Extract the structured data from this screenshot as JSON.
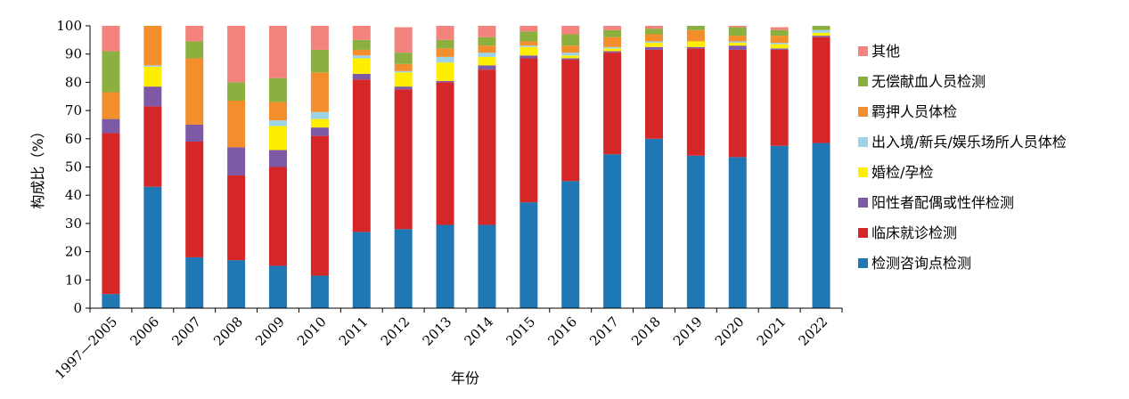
{
  "chart_data": {
    "type": "bar",
    "stacked": true,
    "xlabel": "年份",
    "ylabel": "构成比（%）",
    "ylim": [
      0,
      100
    ],
    "yticks": [
      0,
      10,
      20,
      30,
      40,
      50,
      60,
      70,
      80,
      90,
      100
    ],
    "legend_position": "right",
    "grid": false,
    "categories": [
      "1997—2005",
      "2006",
      "2007",
      "2008",
      "2009",
      "2010",
      "2011",
      "2012",
      "2013",
      "2014",
      "2015",
      "2016",
      "2017",
      "2018",
      "2019",
      "2020",
      "2021",
      "2022"
    ],
    "series": [
      {
        "name": "检测咨询点检测",
        "color": "#1f77b4",
        "values": [
          5,
          43,
          18,
          17,
          15,
          11.5,
          27,
          28,
          29.5,
          29.5,
          37.5,
          45,
          54.5,
          60,
          54,
          53.5,
          57.5,
          58.5
        ]
      },
      {
        "name": "临床就诊检测",
        "color": "#d62728",
        "values": [
          57,
          28.5,
          41,
          30,
          35,
          49.5,
          54,
          49.5,
          50.5,
          55,
          51,
          43,
          36,
          31.5,
          38,
          38,
          34,
          37.5
        ]
      },
      {
        "name": "阳性者配偶或性伴检测",
        "color": "#7e5aa6",
        "values": [
          5,
          7,
          6,
          10,
          6,
          3,
          2,
          1,
          0.5,
          1.5,
          1,
          0.5,
          0.5,
          1,
          0.5,
          1.5,
          0.5,
          0.5
        ]
      },
      {
        "name": "婚检/孕检",
        "color": "#ffee00",
        "values": [
          0,
          7,
          0,
          0,
          8.5,
          3,
          5.5,
          5,
          6.5,
          3,
          3,
          1,
          1,
          1.5,
          2,
          1,
          1.5,
          1
        ]
      },
      {
        "name": "出入境/新兵/娱乐场所人员体检",
        "color": "#9dd3e6",
        "values": [
          0,
          0.5,
          0,
          0,
          2,
          2.5,
          1,
          0.5,
          2,
          1.5,
          0.5,
          1,
          0.5,
          0.5,
          0,
          0.5,
          0.5,
          1
        ]
      },
      {
        "name": "羁押人员体检",
        "color": "#f28e2b",
        "values": [
          9.5,
          14,
          23.5,
          16.5,
          6.5,
          14,
          2,
          2.5,
          3,
          2.5,
          1.5,
          2.5,
          3.5,
          2.5,
          4,
          2,
          2.5,
          0
        ]
      },
      {
        "name": "无偿献血人员检测",
        "color": "#8cb040",
        "values": [
          14.5,
          0,
          6,
          6.5,
          8.5,
          8,
          3.5,
          4,
          3,
          3,
          3.5,
          4,
          2.5,
          2,
          1.5,
          3,
          2,
          1.5
        ]
      },
      {
        "name": "其他",
        "color": "#f4837d",
        "values": [
          9,
          0,
          5.5,
          20,
          18.5,
          8.5,
          5,
          9,
          5,
          4,
          2,
          3,
          1.5,
          1,
          0,
          0.5,
          1,
          0
        ]
      }
    ]
  }
}
